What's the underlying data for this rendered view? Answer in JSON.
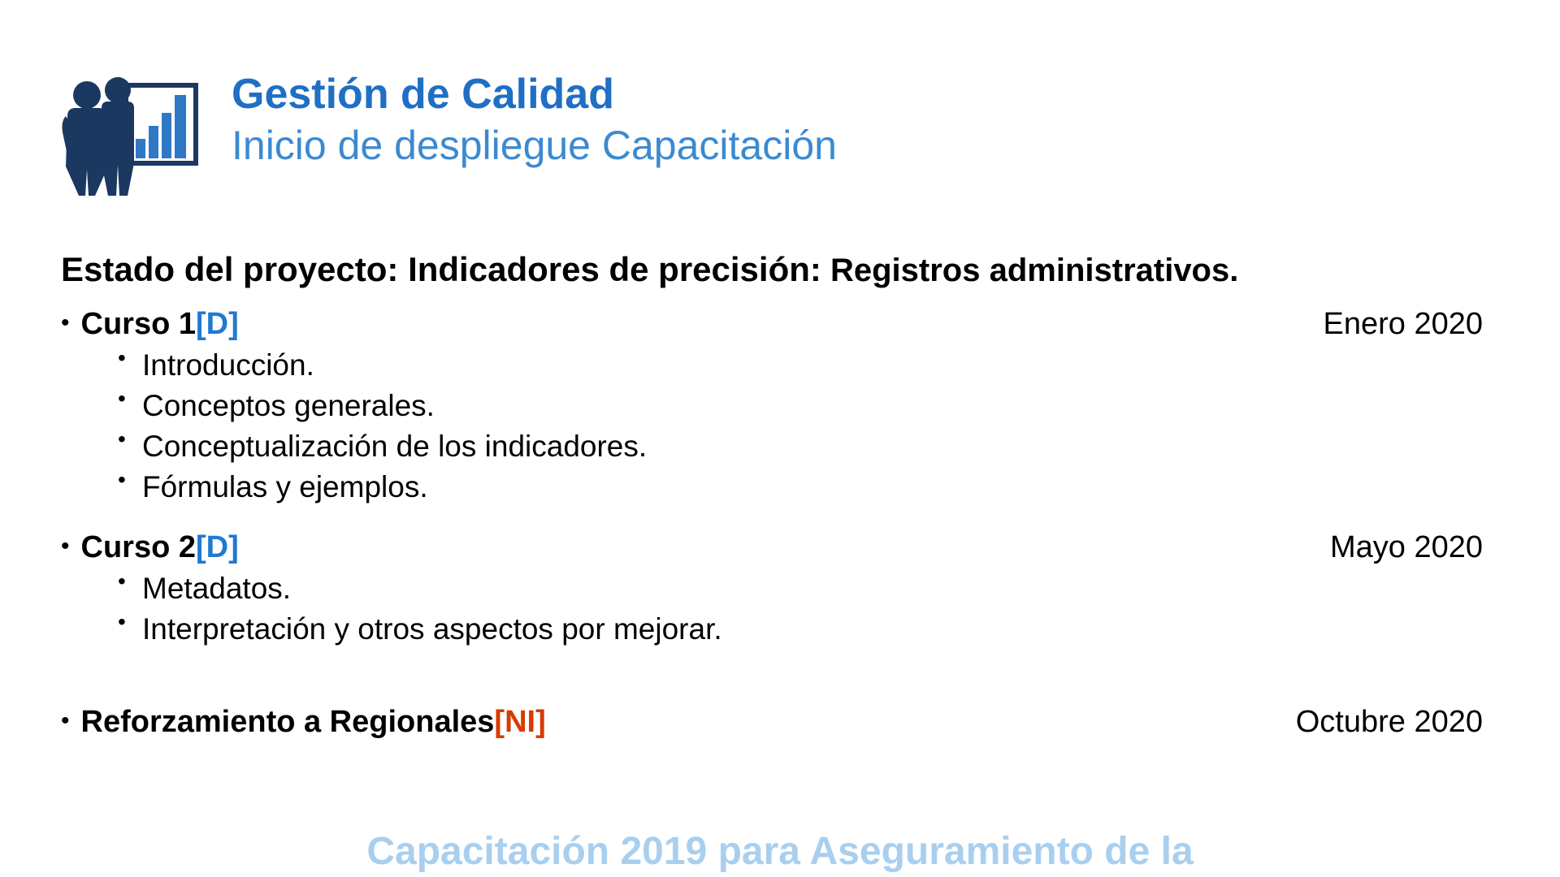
{
  "header": {
    "title": "Gestión de Calidad",
    "subtitle": "Inicio de despliegue Capacitación"
  },
  "icon": {
    "people_color": "#1b3860",
    "chart_border_color": "#1b3860",
    "chart_fill_color": "#ffffff",
    "bars_color": "#2e78c5"
  },
  "project_status": {
    "label": "Estado del proyecto: Indicadores de precisión:",
    "secondary": " Registros administrativos."
  },
  "courses": [
    {
      "name": "Curso 1",
      "tag": "[D]",
      "tag_color": "#2279d0",
      "date": "Enero 2020",
      "items": [
        "Introducción.",
        "Conceptos generales.",
        "Conceptualización de los indicadores.",
        "Fórmulas y ejemplos."
      ]
    },
    {
      "name": "Curso 2",
      "tag": "[D]",
      "tag_color": "#2279d0",
      "date": "Mayo  2020",
      "items": [
        "Metadatos.",
        "Interpretación y otros aspectos por mejorar."
      ]
    },
    {
      "name": "Reforzamiento a Regionales",
      "tag": "[NI]",
      "tag_color": "#d93a00",
      "date": "Octubre 2020",
      "items": []
    }
  ],
  "banner": "Capacitación 2019 para Aseguramiento de la",
  "colors": {
    "title_color": "#1f6fc5",
    "subtitle_color": "#3b8ad1",
    "text_color": "#000000",
    "banner_color": "#a9cfef",
    "background": "#ffffff"
  },
  "typography": {
    "title_fontsize": 52,
    "subtitle_fontsize": 50,
    "status_fontsize": 42,
    "body_fontsize": 38,
    "banner_fontsize": 48
  }
}
